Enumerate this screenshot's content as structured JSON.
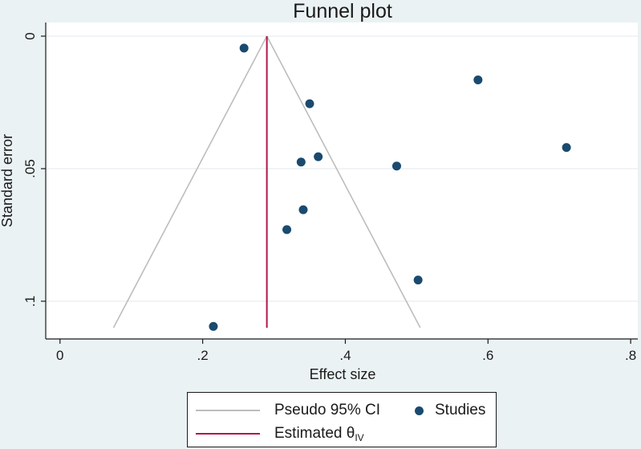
{
  "chart_data": {
    "type": "scatter",
    "title": "Funnel plot",
    "xlabel": "Effect size",
    "ylabel": "Standard error",
    "xlim": [
      -0.02,
      0.81
    ],
    "ylim": [
      0.11,
      0.0
    ],
    "y_reversed": true,
    "x_ticks": [
      0,
      0.2,
      0.4,
      0.6,
      0.8
    ],
    "x_tick_labels": [
      "0",
      ".2",
      ".4",
      ".6",
      ".8"
    ],
    "y_ticks": [
      0,
      0.05,
      0.1
    ],
    "y_tick_labels": [
      "0",
      ".05",
      ".1"
    ],
    "grid": true,
    "estimated_theta": 0.29,
    "ci_triangle": {
      "apex": [
        0.29,
        0.0
      ],
      "base_left": [
        0.075,
        0.11
      ],
      "base_right": [
        0.505,
        0.11
      ]
    },
    "series": [
      {
        "name": "Studies",
        "points": [
          {
            "x": 0.258,
            "y": 0.0045
          },
          {
            "x": 0.586,
            "y": 0.0165
          },
          {
            "x": 0.35,
            "y": 0.0255
          },
          {
            "x": 0.71,
            "y": 0.042
          },
          {
            "x": 0.362,
            "y": 0.0455
          },
          {
            "x": 0.338,
            "y": 0.0475
          },
          {
            "x": 0.472,
            "y": 0.049
          },
          {
            "x": 0.341,
            "y": 0.0655
          },
          {
            "x": 0.318,
            "y": 0.073
          },
          {
            "x": 0.502,
            "y": 0.092
          },
          {
            "x": 0.215,
            "y": 0.1095
          }
        ]
      }
    ],
    "legend": {
      "position": "bottom",
      "ci_label": "Pseudo 95% CI",
      "studies_label": "Studies",
      "estimate_label": "Estimated θ",
      "estimate_subscript": "IV"
    },
    "colors": {
      "background": "#eaf2f3",
      "plot_area": "#ffffff",
      "grid": "#e0eaec",
      "ci_line": "#bdbdbd",
      "estimate_line": "#b0174a",
      "points": "#1a4a6e",
      "text": "#1a1a1a"
    }
  }
}
